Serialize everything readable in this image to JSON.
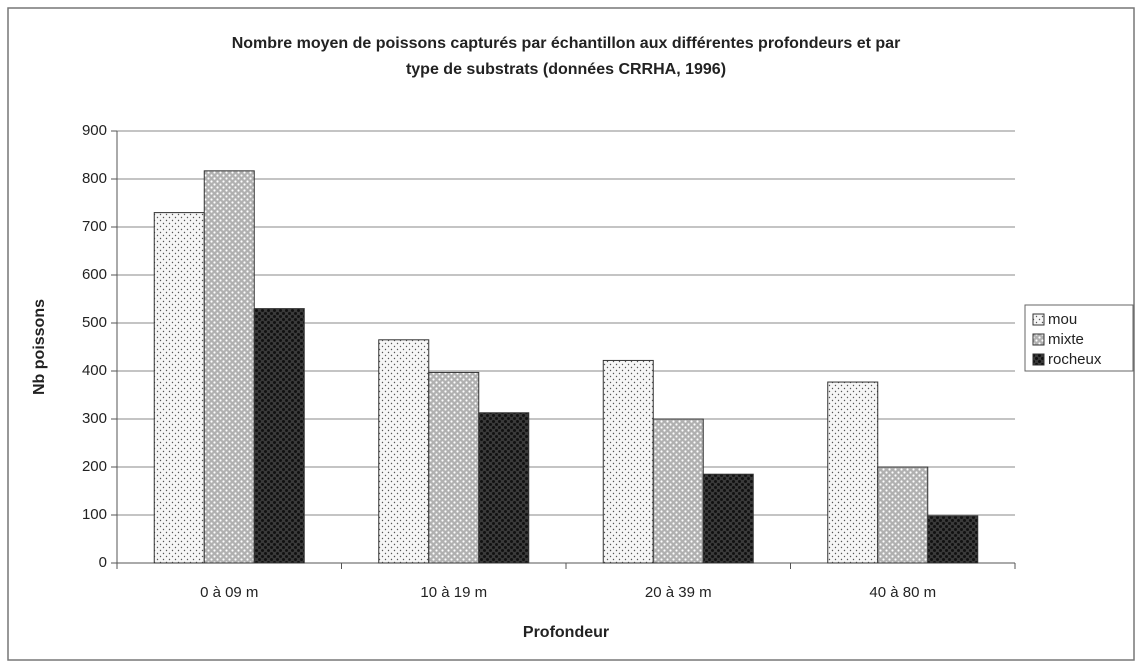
{
  "chart_data": {
    "type": "bar",
    "title": [
      "Nombre moyen de poissons capturés par échantillon aux différentes profondeurs et par",
      "type de substrats (données CRRHA, 1996)"
    ],
    "x_label": "Profondeur",
    "y_label": "Nb poissons",
    "categories": [
      "0 à 09 m",
      "10 à 19 m",
      "20 à 39 m",
      "40 à 80 m"
    ],
    "series": [
      {
        "name": "mou",
        "color": "#f6f6f6",
        "values": [
          730,
          465,
          422,
          377
        ]
      },
      {
        "name": "mixte",
        "color": "#b0b0b0",
        "values": [
          817,
          397,
          300,
          200
        ]
      },
      {
        "name": "rocheux",
        "color": "#3a3a3a",
        "values": [
          530,
          313,
          185,
          98
        ]
      }
    ],
    "ylim": [
      0,
      900
    ],
    "yticks": [
      0,
      100,
      200,
      300,
      400,
      500,
      600,
      700,
      800,
      900
    ],
    "grid": true,
    "legend": "right"
  }
}
